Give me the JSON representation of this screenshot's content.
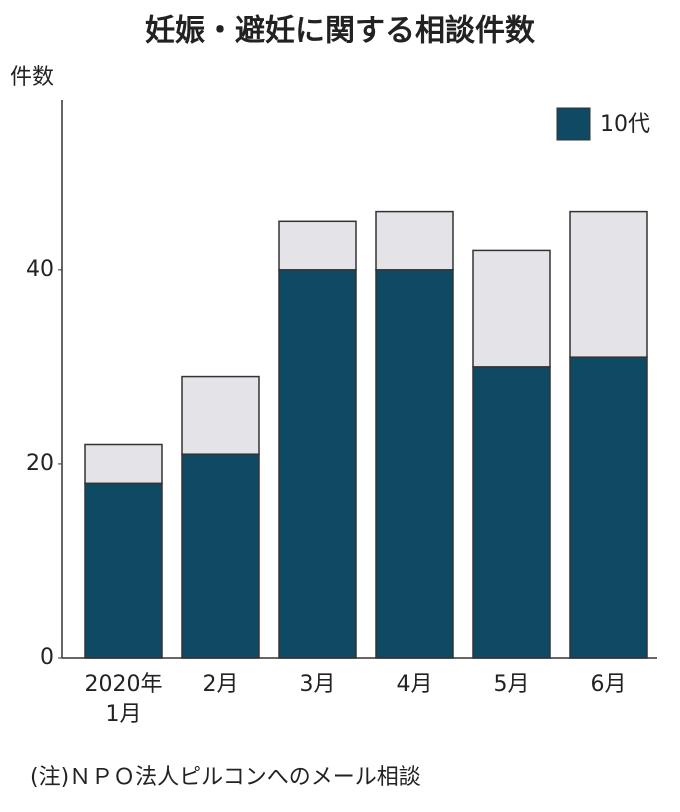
{
  "chart_data": {
    "type": "stacked_bar",
    "title": "妊娠・避妊に関する相談件数",
    "y_label": "件数",
    "categories": [
      "2020年\n1月",
      "2月",
      "3月",
      "4月",
      "5月",
      "6月"
    ],
    "series": [
      {
        "name": "10代",
        "color": "#0e4a63",
        "values": [
          18,
          21,
          40,
          40,
          30,
          31
        ]
      },
      {
        "color": "#e3e3e8",
        "values": [
          4,
          8,
          5,
          6,
          12,
          15
        ]
      }
    ],
    "ylim": [
      0,
      57.5
    ],
    "yticks": [
      0,
      20,
      40
    ],
    "note": "(注)ＮＰＯ法人ピルコンへのメール相談"
  }
}
